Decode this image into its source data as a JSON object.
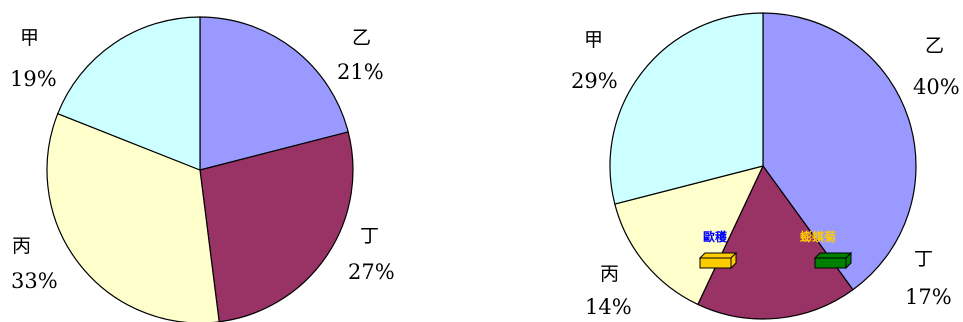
{
  "chart_data": [
    {
      "type": "pie",
      "categories": [
        "乙",
        "丁",
        "丙",
        "甲"
      ],
      "values": [
        21,
        27,
        33,
        19
      ],
      "labels": [
        "21%",
        "27%",
        "33%",
        "19%"
      ],
      "colors": [
        "#9999ff",
        "#993366",
        "#ffffcc",
        "#ccffff"
      ]
    },
    {
      "type": "pie",
      "categories": [
        "乙",
        "丁",
        "丙",
        "甲"
      ],
      "values": [
        40,
        17,
        14,
        29
      ],
      "labels": [
        "40%",
        "17%",
        "14%",
        "29%"
      ],
      "colors": [
        "#9999ff",
        "#993366",
        "#ffffcc",
        "#ccffff"
      ],
      "annotations": [
        {
          "text": "歐穫",
          "text_color": "#0000ff",
          "box_color": "#ffcc00"
        },
        {
          "text": "蟛蜞菊",
          "text_color": "#ffcc00",
          "box_color": "#008000"
        }
      ]
    }
  ]
}
